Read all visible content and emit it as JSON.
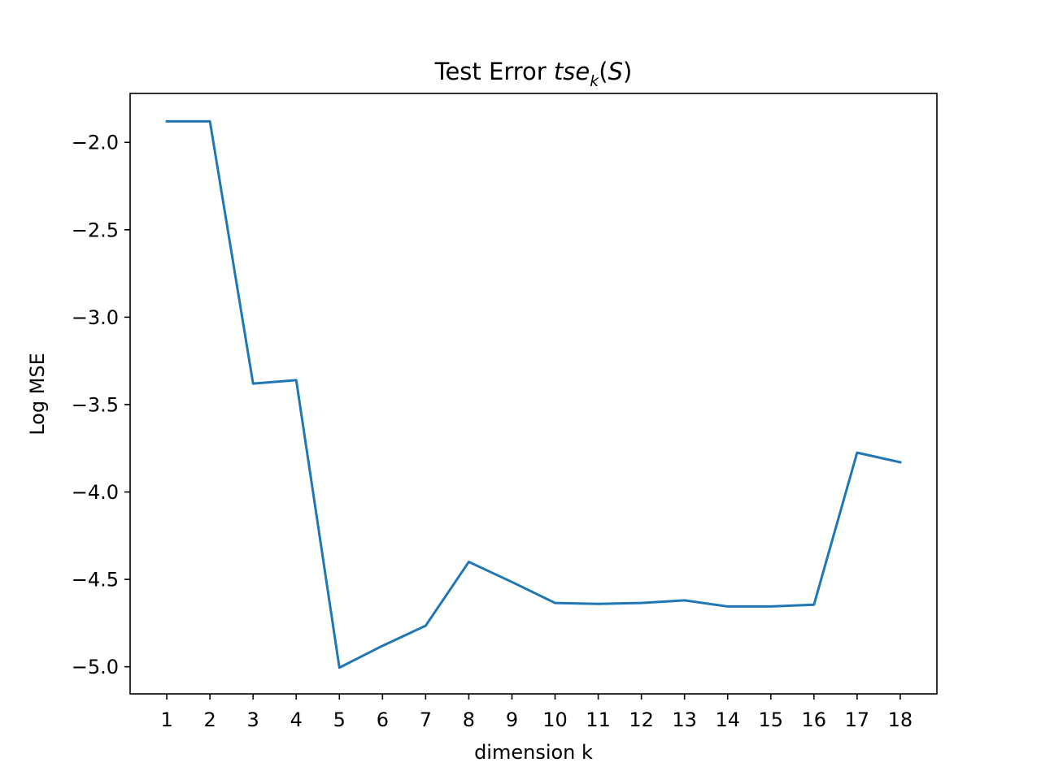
{
  "chart_data": {
    "type": "line",
    "title": {
      "text": "Test Error ",
      "math_base": "tse",
      "math_sub": "k",
      "math_arg_open": "(",
      "math_arg": "S",
      "math_arg_close": ")"
    },
    "xlabel": "dimension k",
    "ylabel": "Log MSE",
    "x": [
      1,
      2,
      3,
      4,
      5,
      6,
      7,
      8,
      9,
      10,
      11,
      12,
      13,
      14,
      15,
      16,
      17,
      18
    ],
    "x_ticks": [
      "1",
      "2",
      "3",
      "4",
      "5",
      "6",
      "7",
      "8",
      "9",
      "10",
      "11",
      "12",
      "13",
      "14",
      "15",
      "16",
      "17",
      "18"
    ],
    "y_ticks": [
      -2.0,
      -2.5,
      -3.0,
      -3.5,
      -4.0,
      -4.5,
      -5.0
    ],
    "y_tick_labels": [
      "−2.0",
      "−2.5",
      "−3.0",
      "−3.5",
      "−4.0",
      "−4.5",
      "−5.0"
    ],
    "xlim": [
      0.15,
      18.85
    ],
    "ylim": [
      -5.155,
      -1.72
    ],
    "grid": false,
    "legend": "none",
    "series": [
      {
        "color": "#1f77b4",
        "values": [
          -1.88,
          -1.88,
          -3.38,
          -3.36,
          -5.005,
          -4.88,
          -4.765,
          -4.4,
          -4.515,
          -4.635,
          -4.64,
          -4.635,
          -4.62,
          -4.655,
          -4.655,
          -4.645,
          -3.775,
          -3.83
        ]
      }
    ]
  }
}
